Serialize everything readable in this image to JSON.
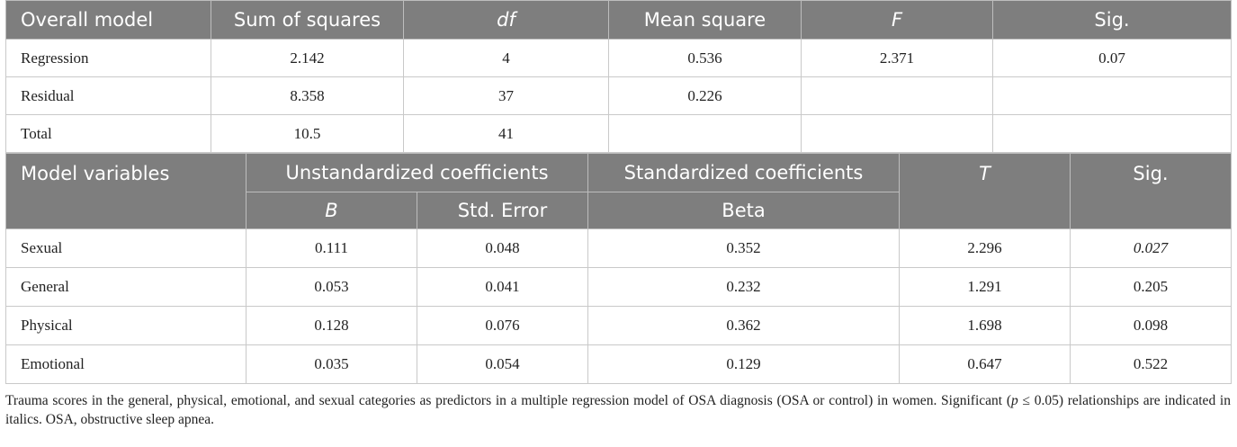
{
  "overall_model": {
    "headers": [
      "Overall model",
      "Sum of squares",
      "df",
      "Mean square",
      "F",
      "Sig."
    ],
    "rows": [
      {
        "label": "Regression",
        "sum_of_squares": "2.142",
        "df": "4",
        "mean_square": "0.536",
        "f": "2.371",
        "sig": "0.07"
      },
      {
        "label": "Residual",
        "sum_of_squares": "8.358",
        "df": "37",
        "mean_square": "0.226",
        "f": "",
        "sig": ""
      },
      {
        "label": "Total",
        "sum_of_squares": "10.5",
        "df": "41",
        "mean_square": "",
        "f": "",
        "sig": ""
      }
    ]
  },
  "model_variables": {
    "headers": {
      "label": "Model variables",
      "unstandardized": "Unstandardized coefficients",
      "standardized": "Standardized coefficients",
      "t": "T",
      "sig": "Sig.",
      "b": "B",
      "std_error": "Std. Error",
      "beta": "Beta"
    },
    "rows": [
      {
        "label": "Sexual",
        "b": "0.111",
        "std_error": "0.048",
        "beta": "0.352",
        "t": "2.296",
        "sig": "0.027"
      },
      {
        "label": "General",
        "b": "0.053",
        "std_error": "0.041",
        "beta": "0.232",
        "t": "1.291",
        "sig": "0.205"
      },
      {
        "label": "Physical",
        "b": "0.128",
        "std_error": "0.076",
        "beta": "0.362",
        "t": "1.698",
        "sig": "0.098"
      },
      {
        "label": "Emotional",
        "b": "0.035",
        "std_error": "0.054",
        "beta": "0.129",
        "t": "0.647",
        "sig": "0.522"
      }
    ]
  },
  "footnote": {
    "part1": "Trauma scores in the general, physical, emotional, and sexual categories as predictors in a multiple regression model of OSA diagnosis (OSA or control) in women. Significant (",
    "p": "p",
    "part2": " ≤ 0.05) relationships are indicated in italics. OSA, obstructive sleep apnea."
  }
}
